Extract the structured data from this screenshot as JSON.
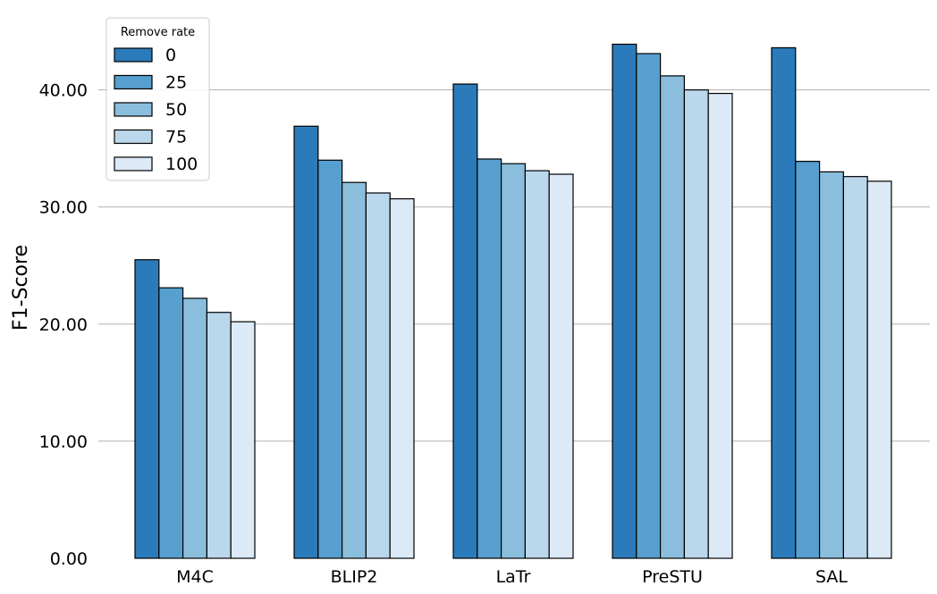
{
  "chart_data": {
    "type": "bar",
    "categories": [
      "M4C",
      "BLIP2",
      "LaTr",
      "PreSTU",
      "SAL"
    ],
    "series": [
      {
        "name": "0",
        "color": "#2b7bba",
        "values": [
          25.5,
          36.9,
          40.5,
          43.9,
          43.6
        ]
      },
      {
        "name": "25",
        "color": "#569fcf",
        "values": [
          23.1,
          34.0,
          34.1,
          43.1,
          33.9
        ]
      },
      {
        "name": "50",
        "color": "#8bbedd",
        "values": [
          22.2,
          32.1,
          33.7,
          41.2,
          33.0
        ]
      },
      {
        "name": "75",
        "color": "#bbd7ec",
        "values": [
          21.0,
          31.2,
          33.1,
          40.0,
          32.6
        ]
      },
      {
        "name": "100",
        "color": "#dce9f6",
        "values": [
          20.2,
          30.7,
          32.8,
          39.7,
          32.2
        ]
      }
    ],
    "title": "",
    "xlabel": "",
    "ylabel": "F1-Score",
    "ylim": [
      0,
      46
    ],
    "yticks": [
      0,
      10,
      20,
      30,
      40
    ],
    "ytick_format": "2dp",
    "grid": "horizontal",
    "legend": {
      "title": "Remove rate",
      "placement": "top-left"
    }
  }
}
